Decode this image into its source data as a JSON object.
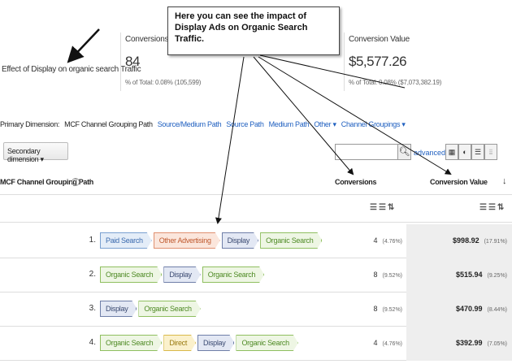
{
  "summary": {
    "effect_label": "Effect of Display on organic search Traffic",
    "conversions": {
      "title": "Conversions",
      "value": "84",
      "sub": "% of Total: 0.08% (105,599)"
    },
    "conversion_value": {
      "title": "Conversion Value",
      "value": "$5,577.26",
      "sub": "% of Total: 0.08% ($7,073,382.19)"
    }
  },
  "annotation": "Here you can see the impact of Display Ads on Organic Search Traffic.",
  "dimension_bar": {
    "label": "Primary Dimension:",
    "active": "MCF Channel Grouping Path",
    "links": [
      "Source/Medium Path",
      "Source Path",
      "Medium Path",
      "Other ▾",
      "Channel Groupings ▾"
    ]
  },
  "secondary_dimension": "Secondary dimension ▾",
  "search": {
    "placeholder": "",
    "advanced_label": "advanced"
  },
  "view_icons": [
    "grid-view-icon",
    "pie-view-icon",
    "bar-view-icon",
    "pivot-view-icon"
  ],
  "table": {
    "col_path": "MCF Channel Grouping Path",
    "help": "?",
    "col_conversions": "Conversions",
    "col_value": "Conversion Value",
    "sort": "↓",
    "rows": [
      {
        "num": "1.",
        "path": [
          "Paid Search",
          "Other Advertising",
          "Display",
          "Organic Search"
        ],
        "conversions": "4",
        "conv_pct": "(4.76%)",
        "value": "$998.92",
        "value_pct": "(17.91%)"
      },
      {
        "num": "2.",
        "path": [
          "Organic Search",
          "Display",
          "Organic Search"
        ],
        "conversions": "8",
        "conv_pct": "(9.52%)",
        "value": "$515.94",
        "value_pct": "(9.25%)"
      },
      {
        "num": "3.",
        "path": [
          "Display",
          "Organic Search"
        ],
        "conversions": "8",
        "conv_pct": "(9.52%)",
        "value": "$470.99",
        "value_pct": "(8.44%)"
      },
      {
        "num": "4.",
        "path": [
          "Organic Search",
          "Direct",
          "Display",
          "Organic Search"
        ],
        "conversions": "4",
        "conv_pct": "(4.76%)",
        "value": "$392.99",
        "value_pct": "(7.05%)"
      }
    ]
  },
  "chip_colors": {
    "Paid Search": {
      "bg": "#e4edf8",
      "border": "#7aa0d0",
      "text": "#3a6aae"
    },
    "Other Advertising": {
      "bg": "#fbe6dc",
      "border": "#e09070",
      "text": "#c05a30"
    },
    "Display": {
      "bg": "#e3e8f4",
      "border": "#6f7fa8",
      "text": "#3b4a72"
    },
    "Organic Search": {
      "bg": "#eef6e4",
      "border": "#8fbf60",
      "text": "#4e8a24"
    },
    "Direct": {
      "bg": "#fbf1cc",
      "border": "#d9b94a",
      "text": "#9a7a10"
    }
  }
}
